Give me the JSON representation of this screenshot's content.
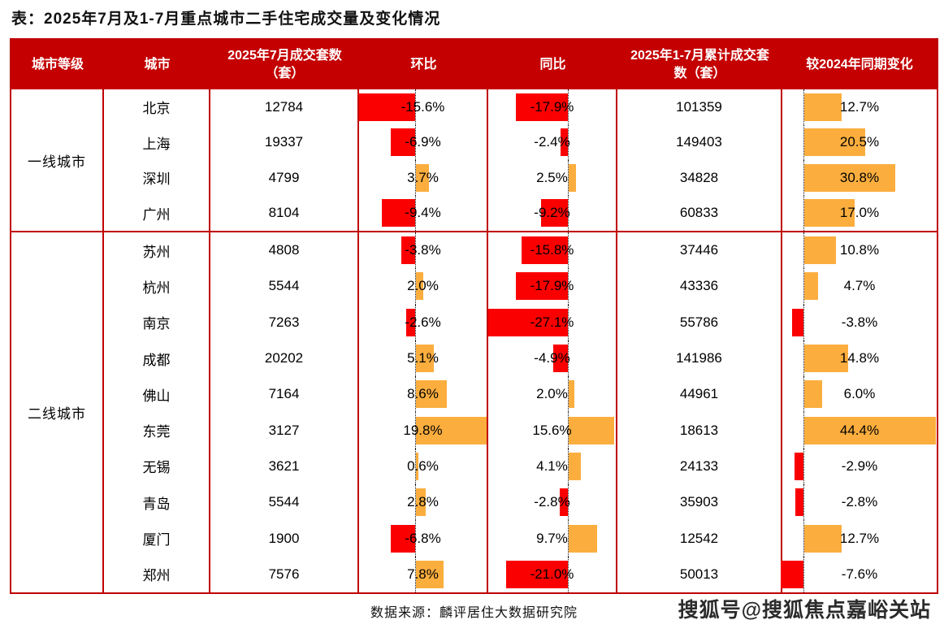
{
  "title": "表：2025年7月及1-7月重点城市二手住宅成交量及变化情况",
  "colors": {
    "header_red": "#C40000",
    "line_red": "#C00000",
    "negative_bar": "#FB0000",
    "positive_bar": "#FBAE3E"
  },
  "columns": [
    "城市等级",
    "城市",
    "2025年7月成交套数（套）",
    "环比",
    "同比",
    "2025年1-7月累计成交套数（套）",
    "较2024年同期变化"
  ],
  "groups": [
    {
      "tier": "一线城市",
      "rows": [
        {
          "city": "北京",
          "jul": "12784",
          "mom": -15.6,
          "mom_label": "-15.6%",
          "yoy": -17.9,
          "yoy_label": "-17.9%",
          "cum": "101359",
          "chg": 12.7,
          "chg_label": "12.7%"
        },
        {
          "city": "上海",
          "jul": "19337",
          "mom": -6.9,
          "mom_label": "-6.9%",
          "yoy": -2.4,
          "yoy_label": "-2.4%",
          "cum": "149403",
          "chg": 20.5,
          "chg_label": "20.5%"
        },
        {
          "city": "深圳",
          "jul": "4799",
          "mom": 3.7,
          "mom_label": "3.7%",
          "yoy": 2.5,
          "yoy_label": "2.5%",
          "cum": "34828",
          "chg": 30.8,
          "chg_label": "30.8%"
        },
        {
          "city": "广州",
          "jul": "8104",
          "mom": -9.4,
          "mom_label": "-9.4%",
          "yoy": -9.2,
          "yoy_label": "-9.2%",
          "cum": "60833",
          "chg": 17.0,
          "chg_label": "17.0%"
        }
      ]
    },
    {
      "tier": "二线城市",
      "rows": [
        {
          "city": "苏州",
          "jul": "4808",
          "mom": -3.8,
          "mom_label": "-3.8%",
          "yoy": -15.8,
          "yoy_label": "-15.8%",
          "cum": "37446",
          "chg": 10.8,
          "chg_label": "10.8%"
        },
        {
          "city": "杭州",
          "jul": "5544",
          "mom": 2.0,
          "mom_label": "2.0%",
          "yoy": -17.9,
          "yoy_label": "-17.9%",
          "cum": "43336",
          "chg": 4.7,
          "chg_label": "4.7%"
        },
        {
          "city": "南京",
          "jul": "7263",
          "mom": -2.6,
          "mom_label": "-2.6%",
          "yoy": -27.1,
          "yoy_label": "-27.1%",
          "cum": "55786",
          "chg": -3.8,
          "chg_label": "-3.8%"
        },
        {
          "city": "成都",
          "jul": "20202",
          "mom": 5.1,
          "mom_label": "5.1%",
          "yoy": -4.9,
          "yoy_label": "-4.9%",
          "cum": "141986",
          "chg": 14.8,
          "chg_label": "14.8%"
        },
        {
          "city": "佛山",
          "jul": "7164",
          "mom": 8.6,
          "mom_label": "8.6%",
          "yoy": 2.0,
          "yoy_label": "2.0%",
          "cum": "44961",
          "chg": 6.0,
          "chg_label": "6.0%"
        },
        {
          "city": "东莞",
          "jul": "3127",
          "mom": 19.8,
          "mom_label": "19.8%",
          "yoy": 15.6,
          "yoy_label": "15.6%",
          "cum": "18613",
          "chg": 44.4,
          "chg_label": "44.4%"
        },
        {
          "city": "无锡",
          "jul": "3621",
          "mom": 0.6,
          "mom_label": "0.6%",
          "yoy": 4.1,
          "yoy_label": "4.1%",
          "cum": "24133",
          "chg": -2.9,
          "chg_label": "-2.9%"
        },
        {
          "city": "青岛",
          "jul": "5544",
          "mom": 2.8,
          "mom_label": "2.8%",
          "yoy": -2.8,
          "yoy_label": "-2.8%",
          "cum": "35903",
          "chg": -2.8,
          "chg_label": "-2.8%"
        },
        {
          "city": "厦门",
          "jul": "1900",
          "mom": -6.8,
          "mom_label": "-6.8%",
          "yoy": 9.7,
          "yoy_label": "9.7%",
          "cum": "12542",
          "chg": 12.7,
          "chg_label": "12.7%"
        },
        {
          "city": "郑州",
          "jul": "7576",
          "mom": 7.8,
          "mom_label": "7.8%",
          "yoy": -21.0,
          "yoy_label": "-21.0%",
          "cum": "50013",
          "chg": -7.6,
          "chg_label": "-7.6%"
        }
      ]
    }
  ],
  "footer": {
    "source": "数据来源：麟评居住大数据研究院",
    "watermark": "搜狐号@搜狐焦点嘉峪关站"
  },
  "chart_data": {
    "type": "table",
    "title": "表：2025年7月及1-7月重点城市二手住宅成交量及变化情况",
    "columns": [
      "城市等级",
      "城市",
      "2025年7月成交套数（套）",
      "环比",
      "同比",
      "2025年1-7月累计成交套数（套）",
      "较2024年同期变化"
    ],
    "rows": [
      [
        "一线城市",
        "北京",
        12784,
        -15.6,
        -17.9,
        101359,
        12.7
      ],
      [
        "一线城市",
        "上海",
        19337,
        -6.9,
        -2.4,
        149403,
        20.5
      ],
      [
        "一线城市",
        "深圳",
        4799,
        3.7,
        2.5,
        34828,
        30.8
      ],
      [
        "一线城市",
        "广州",
        8104,
        -9.4,
        -9.2,
        60833,
        17.0
      ],
      [
        "二线城市",
        "苏州",
        4808,
        -3.8,
        -15.8,
        37446,
        10.8
      ],
      [
        "二线城市",
        "杭州",
        5544,
        2.0,
        -17.9,
        43336,
        4.7
      ],
      [
        "二线城市",
        "南京",
        7263,
        -2.6,
        -27.1,
        55786,
        -3.8
      ],
      [
        "二线城市",
        "成都",
        20202,
        5.1,
        -4.9,
        141986,
        14.8
      ],
      [
        "二线城市",
        "佛山",
        7164,
        8.6,
        2.0,
        44961,
        6.0
      ],
      [
        "二线城市",
        "东莞",
        3127,
        19.8,
        15.6,
        18613,
        44.4
      ],
      [
        "二线城市",
        "无锡",
        3621,
        0.6,
        4.1,
        24133,
        -2.9
      ],
      [
        "二线城市",
        "青岛",
        5544,
        2.8,
        -2.8,
        35903,
        -2.8
      ],
      [
        "二线城市",
        "厦门",
        1900,
        -6.8,
        9.7,
        12542,
        12.7
      ],
      [
        "二线城市",
        "郑州",
        7576,
        7.8,
        -21.0,
        50013,
        -7.6
      ]
    ],
    "notes": "环比/同比/较2024年同期变化 columns are percentages rendered as in-cell diverging bars: red = negative, orange = positive, dotted line = 0",
    "legend_position": "none",
    "grid": "red table borders, no horizontal row lines inside tier groups"
  }
}
